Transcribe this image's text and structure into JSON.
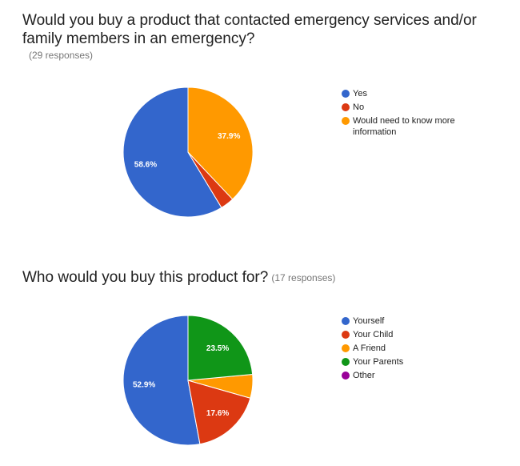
{
  "charts": [
    {
      "question": "Would you buy a product that contacted emergency services and/or family members in an emergency?",
      "responses_label": "(29 responses)"
    },
    {
      "question": "Who would you buy this product for?",
      "responses_label": "(17 responses)"
    }
  ],
  "chart_data": [
    {
      "type": "pie",
      "title": "Would you buy a product that contacted emergency services and/or family members in an emergency?",
      "subtitle": "(29 responses)",
      "start_angle_deg": 90,
      "direction": "counterclockwise",
      "legend_position": "right",
      "slices": [
        {
          "name": "Yes",
          "value": 58.6,
          "label": "58.6%",
          "color": "#3366cc"
        },
        {
          "name": "No",
          "value": 3.4,
          "label": "",
          "color": "#dc3912"
        },
        {
          "name": "Would need to know more information",
          "value": 37.9,
          "label": "37.9%",
          "color": "#ff9900"
        }
      ]
    },
    {
      "type": "pie",
      "title": "Who would you buy this product for?",
      "subtitle": "(17 responses)",
      "start_angle_deg": 90,
      "direction": "counterclockwise",
      "legend_position": "right",
      "slices": [
        {
          "name": "Yourself",
          "value": 52.9,
          "label": "52.9%",
          "color": "#3366cc"
        },
        {
          "name": "Your Child",
          "value": 17.6,
          "label": "17.6%",
          "color": "#dc3912"
        },
        {
          "name": "A Friend",
          "value": 5.9,
          "label": "",
          "color": "#ff9900"
        },
        {
          "name": "Your Parents",
          "value": 23.5,
          "label": "23.5%",
          "color": "#109618"
        },
        {
          "name": "Other",
          "value": 0,
          "label": "",
          "color": "#990099"
        }
      ]
    }
  ]
}
